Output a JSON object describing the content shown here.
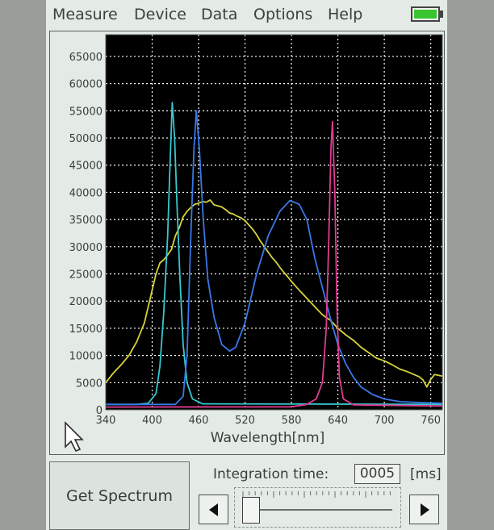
{
  "menu": {
    "items": [
      {
        "label": "Measure",
        "name": "menu-measure"
      },
      {
        "label": "Device",
        "name": "menu-device"
      },
      {
        "label": "Data",
        "name": "menu-data"
      },
      {
        "label": "Options",
        "name": "menu-options"
      },
      {
        "label": "Help",
        "name": "menu-help"
      }
    ]
  },
  "battery": {
    "level": 1.0,
    "color": "#39c52f",
    "icon": "battery-icon"
  },
  "chart_data": {
    "type": "line",
    "title": "",
    "xlabel": "Wavelength[nm]",
    "ylabel": "",
    "xlim": [
      340,
      775
    ],
    "ylim": [
      0,
      69000
    ],
    "x_ticks": [
      340,
      400,
      460,
      520,
      580,
      640,
      700,
      760
    ],
    "y_ticks": [
      0,
      5000,
      10000,
      15000,
      20000,
      25000,
      30000,
      35000,
      40000,
      45000,
      50000,
      55000,
      60000,
      65000
    ],
    "grid": true,
    "background": "#000000",
    "series": [
      {
        "color": "#d8d23a",
        "points": [
          [
            340,
            5000
          ],
          [
            350,
            6800
          ],
          [
            360,
            8300
          ],
          [
            370,
            10000
          ],
          [
            380,
            12500
          ],
          [
            390,
            16000
          ],
          [
            395,
            19000
          ],
          [
            400,
            22000
          ],
          [
            405,
            25000
          ],
          [
            410,
            27000
          ],
          [
            415,
            27600
          ],
          [
            420,
            28500
          ],
          [
            425,
            29500
          ],
          [
            430,
            32000
          ],
          [
            435,
            33500
          ],
          [
            440,
            35500
          ],
          [
            445,
            36500
          ],
          [
            450,
            37200
          ],
          [
            455,
            37800
          ],
          [
            460,
            38000
          ],
          [
            465,
            38300
          ],
          [
            470,
            38200
          ],
          [
            475,
            38600
          ],
          [
            480,
            37700
          ],
          [
            485,
            37500
          ],
          [
            490,
            37300
          ],
          [
            495,
            36800
          ],
          [
            500,
            36200
          ],
          [
            505,
            36000
          ],
          [
            510,
            35600
          ],
          [
            515,
            35300
          ],
          [
            520,
            34800
          ],
          [
            525,
            34000
          ],
          [
            530,
            33200
          ],
          [
            535,
            32200
          ],
          [
            540,
            31000
          ],
          [
            545,
            30000
          ],
          [
            550,
            29000
          ],
          [
            555,
            28000
          ],
          [
            560,
            27200
          ],
          [
            565,
            26200
          ],
          [
            570,
            25300
          ],
          [
            575,
            24500
          ],
          [
            580,
            23600
          ],
          [
            590,
            22000
          ],
          [
            600,
            20500
          ],
          [
            610,
            19000
          ],
          [
            620,
            17500
          ],
          [
            630,
            16500
          ],
          [
            640,
            15000
          ],
          [
            650,
            13800
          ],
          [
            660,
            12800
          ],
          [
            670,
            11500
          ],
          [
            680,
            10500
          ],
          [
            690,
            9500
          ],
          [
            700,
            9000
          ],
          [
            710,
            8300
          ],
          [
            720,
            7500
          ],
          [
            730,
            7000
          ],
          [
            740,
            6400
          ],
          [
            745,
            6100
          ],
          [
            750,
            5500
          ],
          [
            755,
            4200
          ],
          [
            760,
            5600
          ],
          [
            765,
            6500
          ],
          [
            775,
            6200
          ]
        ]
      },
      {
        "color": "#38c8d0",
        "points": [
          [
            340,
            1000
          ],
          [
            380,
            1000
          ],
          [
            395,
            1200
          ],
          [
            405,
            3000
          ],
          [
            410,
            8000
          ],
          [
            415,
            18000
          ],
          [
            420,
            32000
          ],
          [
            423,
            45000
          ],
          [
            426,
            56500
          ],
          [
            429,
            50000
          ],
          [
            432,
            38000
          ],
          [
            436,
            24000
          ],
          [
            440,
            12000
          ],
          [
            445,
            5000
          ],
          [
            452,
            2000
          ],
          [
            465,
            1100
          ],
          [
            775,
            1000
          ]
        ]
      },
      {
        "color": "#3a78e8",
        "points": [
          [
            340,
            1000
          ],
          [
            430,
            1000
          ],
          [
            440,
            2500
          ],
          [
            445,
            10000
          ],
          [
            450,
            32000
          ],
          [
            454,
            48000
          ],
          [
            457,
            55000
          ],
          [
            461,
            48000
          ],
          [
            466,
            35000
          ],
          [
            472,
            24000
          ],
          [
            480,
            17000
          ],
          [
            490,
            12000
          ],
          [
            500,
            10800
          ],
          [
            508,
            11500
          ],
          [
            520,
            16000
          ],
          [
            535,
            25000
          ],
          [
            550,
            32000
          ],
          [
            565,
            36500
          ],
          [
            578,
            38500
          ],
          [
            590,
            37800
          ],
          [
            600,
            35000
          ],
          [
            610,
            28000
          ],
          [
            620,
            22500
          ],
          [
            630,
            17000
          ],
          [
            640,
            12000
          ],
          [
            650,
            8500
          ],
          [
            660,
            6000
          ],
          [
            670,
            4200
          ],
          [
            685,
            2800
          ],
          [
            700,
            2000
          ],
          [
            720,
            1500
          ],
          [
            750,
            1300
          ],
          [
            775,
            1200
          ]
        ]
      },
      {
        "color": "#e03c92",
        "points": [
          [
            340,
            500
          ],
          [
            580,
            550
          ],
          [
            600,
            1000
          ],
          [
            612,
            2000
          ],
          [
            620,
            5000
          ],
          [
            625,
            15000
          ],
          [
            628,
            30000
          ],
          [
            631,
            48000
          ],
          [
            633,
            53000
          ],
          [
            636,
            40000
          ],
          [
            639,
            18000
          ],
          [
            642,
            6000
          ],
          [
            647,
            2000
          ],
          [
            660,
            900
          ],
          [
            775,
            700
          ]
        ]
      }
    ]
  },
  "cursor": {
    "icon": "pointer-arrow-icon"
  },
  "buttons": {
    "get_spectrum": "Get Spectrum"
  },
  "integration": {
    "label": "Integration time:",
    "value": "0005",
    "unit": "[ms]"
  },
  "slider": {
    "value": 0.03,
    "left_icon": "left-arrow-icon",
    "right_icon": "right-arrow-icon"
  }
}
